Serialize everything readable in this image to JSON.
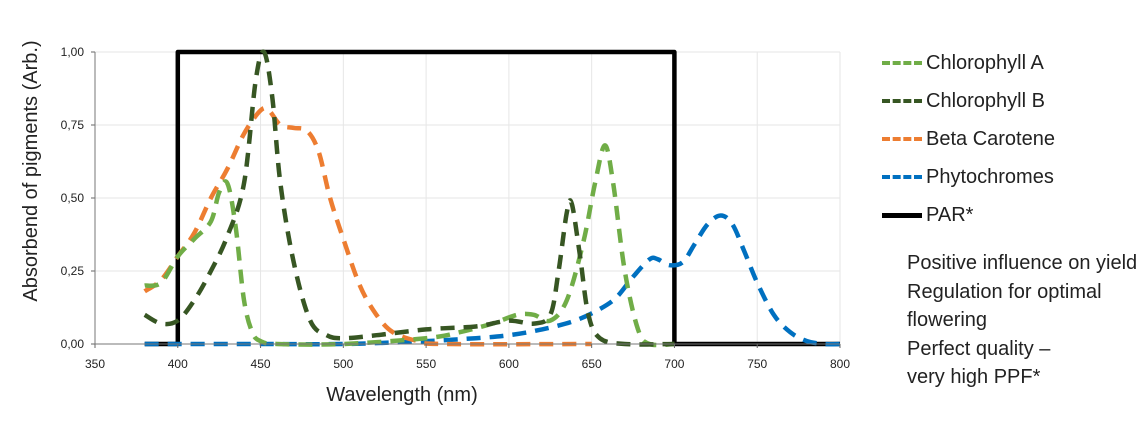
{
  "chart_data": {
    "type": "line",
    "xlabel": "Wavelength (nm)",
    "ylabel": "Absorbend of pigments (Arb.)",
    "xlim": [
      350,
      800
    ],
    "ylim": [
      0,
      1
    ],
    "x_ticks": [
      "350",
      "400",
      "450",
      "500",
      "550",
      "600",
      "650",
      "700",
      "750",
      "800"
    ],
    "y_ticks": [
      "0,00",
      "0,25",
      "0,50",
      "0,75",
      "1,00"
    ],
    "grid": true,
    "legend_position": "right",
    "series": [
      {
        "name": "Chlorophyll A",
        "color": "#70ad47",
        "style": "dashed",
        "points": [
          [
            380,
            0.2
          ],
          [
            390,
            0.21
          ],
          [
            400,
            0.3
          ],
          [
            410,
            0.36
          ],
          [
            420,
            0.42
          ],
          [
            425,
            0.52
          ],
          [
            430,
            0.55
          ],
          [
            435,
            0.4
          ],
          [
            440,
            0.15
          ],
          [
            445,
            0.04
          ],
          [
            450,
            0.01
          ],
          [
            460,
            0.0
          ],
          [
            500,
            0.0
          ],
          [
            550,
            0.02
          ],
          [
            570,
            0.04
          ],
          [
            590,
            0.07
          ],
          [
            605,
            0.1
          ],
          [
            615,
            0.1
          ],
          [
            625,
            0.08
          ],
          [
            635,
            0.15
          ],
          [
            645,
            0.35
          ],
          [
            652,
            0.55
          ],
          [
            658,
            0.68
          ],
          [
            663,
            0.55
          ],
          [
            670,
            0.25
          ],
          [
            678,
            0.05
          ],
          [
            685,
            0.0
          ],
          [
            700,
            0.0
          ]
        ]
      },
      {
        "name": "Chlorophyll B",
        "color": "#375623",
        "style": "dashed",
        "points": [
          [
            380,
            0.1
          ],
          [
            390,
            0.07
          ],
          [
            400,
            0.08
          ],
          [
            410,
            0.15
          ],
          [
            420,
            0.25
          ],
          [
            430,
            0.37
          ],
          [
            440,
            0.55
          ],
          [
            447,
            0.9
          ],
          [
            452,
            1.0
          ],
          [
            457,
            0.85
          ],
          [
            462,
            0.55
          ],
          [
            470,
            0.28
          ],
          [
            480,
            0.08
          ],
          [
            490,
            0.03
          ],
          [
            500,
            0.02
          ],
          [
            520,
            0.03
          ],
          [
            550,
            0.05
          ],
          [
            580,
            0.06
          ],
          [
            600,
            0.08
          ],
          [
            615,
            0.07
          ],
          [
            625,
            0.1
          ],
          [
            630,
            0.25
          ],
          [
            635,
            0.45
          ],
          [
            638,
            0.48
          ],
          [
            643,
            0.3
          ],
          [
            648,
            0.1
          ],
          [
            655,
            0.02
          ],
          [
            670,
            0.0
          ],
          [
            700,
            0.0
          ]
        ]
      },
      {
        "name": "Beta Carotene",
        "color": "#ed7d31",
        "style": "dashed",
        "points": [
          [
            380,
            0.18
          ],
          [
            390,
            0.22
          ],
          [
            400,
            0.3
          ],
          [
            410,
            0.38
          ],
          [
            420,
            0.5
          ],
          [
            430,
            0.6
          ],
          [
            440,
            0.72
          ],
          [
            450,
            0.8
          ],
          [
            455,
            0.8
          ],
          [
            462,
            0.75
          ],
          [
            470,
            0.74
          ],
          [
            478,
            0.73
          ],
          [
            485,
            0.66
          ],
          [
            492,
            0.5
          ],
          [
            500,
            0.36
          ],
          [
            510,
            0.2
          ],
          [
            520,
            0.1
          ],
          [
            530,
            0.04
          ],
          [
            545,
            0.01
          ],
          [
            560,
            0.0
          ],
          [
            650,
            0.0
          ]
        ]
      },
      {
        "name": "Phytochromes",
        "color": "#0070c0",
        "style": "dashed",
        "points": [
          [
            380,
            0.0
          ],
          [
            450,
            0.0
          ],
          [
            500,
            0.0
          ],
          [
            550,
            0.01
          ],
          [
            580,
            0.02
          ],
          [
            600,
            0.03
          ],
          [
            620,
            0.05
          ],
          [
            640,
            0.08
          ],
          [
            655,
            0.12
          ],
          [
            665,
            0.16
          ],
          [
            675,
            0.23
          ],
          [
            685,
            0.29
          ],
          [
            690,
            0.29
          ],
          [
            697,
            0.27
          ],
          [
            705,
            0.28
          ],
          [
            712,
            0.34
          ],
          [
            720,
            0.41
          ],
          [
            728,
            0.44
          ],
          [
            735,
            0.41
          ],
          [
            742,
            0.32
          ],
          [
            750,
            0.21
          ],
          [
            760,
            0.1
          ],
          [
            770,
            0.04
          ],
          [
            780,
            0.01
          ],
          [
            790,
            0.0
          ],
          [
            800,
            0.0
          ]
        ]
      },
      {
        "name": "PAR*",
        "color": "#000000",
        "style": "solid",
        "points": [
          [
            380,
            0.0
          ],
          [
            400,
            0.0
          ],
          [
            400,
            1.0
          ],
          [
            700,
            1.0
          ],
          [
            700,
            0.0
          ],
          [
            800,
            0.0
          ]
        ]
      }
    ]
  },
  "notes": [
    "Positive influence on yield",
    "Regulation for optimal",
    "flowering",
    "Perfect quality –",
    "very high PPF*"
  ]
}
